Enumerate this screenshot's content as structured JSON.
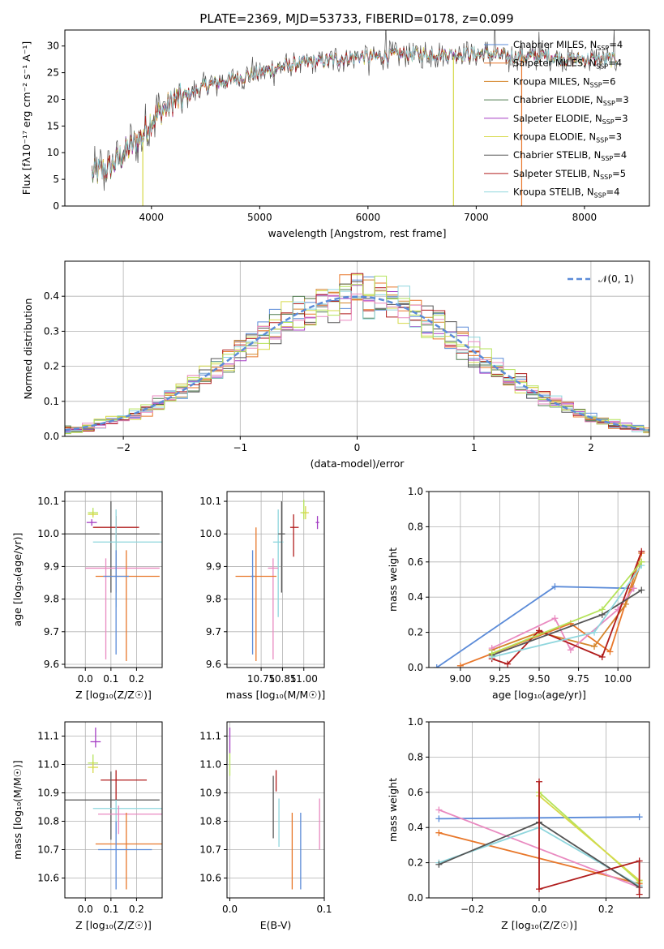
{
  "figure": {
    "title": "PLATE=2369, MJD=53733, FIBERID=0178, z=0.099"
  },
  "colors": {
    "Chabrier MILES": "#5b8bd8",
    "Salpeter MILES": "#e8772a",
    "Kroupa MILES": "#d4852a",
    "Chabrier ELODIE": "#4f7a4f",
    "Salpeter ELODIE": "#a53fc4",
    "Kroupa ELODIE": "#d6d94a",
    "Chabrier STELIB": "#555555",
    "Salpeter STELIB": "#b01c1c",
    "Kroupa STELIB": "#8fd6dd",
    "pink": "#e98ac0",
    "lime": "#b5e35a"
  },
  "chart_data": [
    {
      "id": "spectrum",
      "type": "line",
      "xlabel": "wavelength [Angstrom, rest frame]",
      "ylabel": "Flux [fλ10⁻¹⁷ erg cm⁻² s⁻¹ A⁻¹]",
      "xlim": [
        3200,
        8600
      ],
      "ylim": [
        0,
        33
      ],
      "xticks": [
        4000,
        5000,
        6000,
        7000,
        8000
      ],
      "yticks": [
        0,
        5,
        10,
        15,
        20,
        25,
        30
      ],
      "legend_position": "top-right",
      "legend": [
        {
          "name": "Chabrier MILES",
          "n_ssp": "=4"
        },
        {
          "name": "Salpeter MILES",
          "n_ssp": "=4"
        },
        {
          "name": "Kroupa MILES",
          "n_ssp": "=6"
        },
        {
          "name": "Chabrier ELODIE",
          "n_ssp": "=3"
        },
        {
          "name": "Salpeter ELODIE",
          "n_ssp": "=3"
        },
        {
          "name": "Kroupa ELODIE",
          "n_ssp": "=3"
        },
        {
          "name": "Chabrier STELIB",
          "n_ssp": "=4"
        },
        {
          "name": "Salpeter STELIB",
          "n_ssp": "=5"
        },
        {
          "name": "Kroupa STELIB",
          "n_ssp": "=4"
        }
      ],
      "continuum": [
        [
          3450,
          6
        ],
        [
          3600,
          7
        ],
        [
          3700,
          9
        ],
        [
          3800,
          11
        ],
        [
          3900,
          13
        ],
        [
          4000,
          16
        ],
        [
          4100,
          18
        ],
        [
          4200,
          19.5
        ],
        [
          4300,
          20.5
        ],
        [
          4400,
          21.5
        ],
        [
          4500,
          22.5
        ],
        [
          4700,
          23.5
        ],
        [
          4900,
          24.5
        ],
        [
          5100,
          25.5
        ],
        [
          5300,
          26.5
        ],
        [
          5500,
          27
        ],
        [
          5700,
          27.5
        ],
        [
          5900,
          28
        ],
        [
          6100,
          28
        ],
        [
          6300,
          28.5
        ],
        [
          6500,
          28.5
        ],
        [
          6700,
          28.5
        ],
        [
          6900,
          28.5
        ],
        [
          7100,
          28.5
        ],
        [
          7300,
          28
        ],
        [
          7500,
          28
        ],
        [
          7700,
          28
        ],
        [
          7900,
          27.5
        ],
        [
          8100,
          27.5
        ],
        [
          8300,
          27.5
        ]
      ],
      "line_range": [
        3450,
        8300
      ]
    },
    {
      "id": "residuals",
      "type": "line",
      "xlabel": "(data-model)/error",
      "ylabel": "Normed distribution",
      "xlim": [
        -2.5,
        2.5
      ],
      "ylim": [
        0,
        0.5
      ],
      "xticks": [
        -2,
        -1,
        0,
        1,
        2
      ],
      "xtick_labels": [
        "−2",
        "−1",
        "0",
        "1",
        "2"
      ],
      "yticks": [
        0.0,
        0.1,
        0.2,
        0.3,
        0.4
      ],
      "yticklabels": [
        "0.0",
        "0.1",
        "0.2",
        "0.3",
        "0.4"
      ],
      "legend": "𝒩(0, 1)",
      "legend_position": "top-right",
      "gaussian": {
        "mean": 0,
        "sigma": 1
      },
      "bin_width": 0.1
    },
    {
      "id": "age-vs-Z",
      "type": "scatter",
      "xlabel": "Z [log₁₀(Z/Z☉)]",
      "ylabel": "age  [log₁₀(age/yr)]",
      "xlim": [
        -0.08,
        0.3
      ],
      "ylim": [
        9.59,
        10.13
      ],
      "xticks": [
        0.0,
        0.1,
        0.2
      ],
      "xticklabels": [
        "0.0",
        "0.1",
        "0.2"
      ],
      "yticks": [
        9.6,
        9.7,
        9.8,
        9.9,
        10.0,
        10.1
      ],
      "yticklabels": [
        "9.6",
        "9.7",
        "9.8",
        "9.9",
        "10.0",
        "10.1"
      ],
      "points": [
        {
          "series": "lime",
          "x": 0.03,
          "y": 10.065,
          "xerr": [
            0.02,
            0.02
          ],
          "yerr": [
            0.01,
            0.015
          ]
        },
        {
          "series": "Kroupa ELODIE",
          "x": 0.03,
          "y": 10.06,
          "xerr": [
            0.02,
            0.02
          ],
          "yerr": [
            0.01,
            0.01
          ]
        },
        {
          "series": "Salpeter ELODIE",
          "x": 0.025,
          "y": 10.035,
          "xerr": [
            0.02,
            0.02
          ],
          "yerr": [
            0.01,
            0.01
          ]
        },
        {
          "series": "Chabrier STELIB",
          "x": 0.1,
          "y": 10.0,
          "xerr": [
            0.19,
            0.19
          ],
          "yerr": [
            0.18,
            0.1
          ]
        },
        {
          "series": "Salpeter STELIB",
          "x": 0.12,
          "y": 10.02,
          "xerr": [
            0.09,
            0.09
          ],
          "yerr": [
            0.2,
            0.035
          ]
        },
        {
          "series": "Kroupa STELIB",
          "x": 0.12,
          "y": 9.975,
          "xerr": [
            0.09,
            0.19
          ],
          "yerr": [
            0.2,
            0.1
          ]
        },
        {
          "series": "pink",
          "x": 0.08,
          "y": 9.895,
          "xerr": [
            0.08,
            0.21
          ],
          "yerr": [
            0.28,
            0.03
          ]
        },
        {
          "series": "Salpeter MILES",
          "x": 0.16,
          "y": 9.87,
          "xerr": [
            0.12,
            0.13
          ],
          "yerr": [
            0.26,
            0.08
          ]
        },
        {
          "series": "Chabrier MILES",
          "x": 0.12,
          "y": 9.87,
          "xerr": [
            0.05,
            0.05
          ],
          "yerr": [
            0.24,
            0.08
          ]
        }
      ]
    },
    {
      "id": "age-vs-mass",
      "type": "scatter",
      "xlabel": "mass [log₁₀(M/M☉)]",
      "ylabel": "",
      "xlim": [
        10.55,
        11.12
      ],
      "ylim": [
        9.59,
        10.13
      ],
      "xticks": [
        10.75,
        10.875,
        11.0
      ],
      "xticklabels": [
        "10.75",
        "",
        "11.00"
      ],
      "yticks": [
        9.6,
        9.7,
        9.8,
        9.9,
        10.0,
        10.1
      ],
      "yticklabels": [
        "9.6",
        "9.7",
        "9.8",
        "9.9",
        "10.0",
        "10.1"
      ],
      "extra_xlabel": "10.85",
      "points": [
        {
          "series": "Salpeter ELODIE",
          "x": 11.08,
          "y": 10.035,
          "xerr": [
            0.01,
            0.01
          ],
          "yerr": [
            0.02,
            0.02
          ]
        },
        {
          "series": "lime",
          "x": 11.0,
          "y": 10.065,
          "xerr": [
            0.02,
            0.02
          ],
          "yerr": [
            0.02,
            0.04
          ]
        },
        {
          "series": "Kroupa ELODIE",
          "x": 11.01,
          "y": 10.065,
          "xerr": [
            0.02,
            0.02
          ],
          "yerr": [
            0.02,
            0.02
          ]
        },
        {
          "series": "Salpeter STELIB",
          "x": 10.94,
          "y": 10.02,
          "xerr": [
            0.02,
            0.03
          ],
          "yerr": [
            0.09,
            0.04
          ]
        },
        {
          "series": "Kroupa STELIB",
          "x": 10.85,
          "y": 9.975,
          "xerr": [
            0.03,
            0.03
          ],
          "yerr": [
            0.23,
            0.1
          ]
        },
        {
          "series": "Chabrier STELIB",
          "x": 10.87,
          "y": 10.0,
          "xerr": [
            0.02,
            0.02
          ],
          "yerr": [
            0.18,
            0.1
          ]
        },
        {
          "series": "pink",
          "x": 10.82,
          "y": 9.895,
          "xerr": [
            0.03,
            0.03
          ],
          "yerr": [
            0.28,
            0.03
          ]
        },
        {
          "series": "Salpeter MILES",
          "x": 10.72,
          "y": 9.87,
          "xerr": [
            0.12,
            0.12
          ],
          "yerr": [
            0.26,
            0.15
          ]
        },
        {
          "series": "Chabrier MILES",
          "x": 10.7,
          "y": 9.87,
          "xerr": [
            0.01,
            0.01
          ],
          "yerr": [
            0.24,
            0.08
          ]
        }
      ]
    },
    {
      "id": "weight-vs-age",
      "type": "line",
      "xlabel": "age  [log₁₀(age/yr)]",
      "ylabel": "mass weight",
      "xlim": [
        8.8,
        10.2
      ],
      "ylim": [
        0,
        1
      ],
      "xticks": [
        9.0,
        9.25,
        9.5,
        9.75,
        10.0
      ],
      "xticklabels": [
        "9.00",
        "9.25",
        "9.50",
        "9.75",
        "10.00"
      ],
      "yticks": [
        0,
        0.2,
        0.4,
        0.6,
        0.8,
        1.0
      ],
      "yticklabels": [
        "0.0",
        "0.2",
        "0.4",
        "0.6",
        "0.8",
        "1.0"
      ],
      "series": [
        {
          "name": "Chabrier MILES",
          "x": [
            8.85,
            9.6,
            10.1
          ],
          "y": [
            0.0,
            0.46,
            0.45
          ]
        },
        {
          "name": "Salpeter MILES",
          "x": [
            9.0,
            9.7,
            9.95,
            10.15
          ],
          "y": [
            0.01,
            0.25,
            0.09,
            0.65
          ]
        },
        {
          "name": "Kroupa MILES",
          "x": [
            9.2,
            9.5,
            9.85,
            10.05,
            10.15
          ],
          "y": [
            0.1,
            0.2,
            0.12,
            0.36,
            0.6
          ]
        },
        {
          "name": "pink",
          "x": [
            9.2,
            9.6,
            9.7,
            10.0,
            10.1
          ],
          "y": [
            0.11,
            0.28,
            0.1,
            0.33,
            0.45
          ]
        },
        {
          "name": "Salpeter STELIB",
          "x": [
            9.2,
            9.3,
            9.5,
            9.9,
            10.15
          ],
          "y": [
            0.05,
            0.02,
            0.21,
            0.06,
            0.66
          ]
        },
        {
          "name": "Chabrier STELIB",
          "x": [
            9.2,
            9.9,
            10.15
          ],
          "y": [
            0.07,
            0.3,
            0.44
          ]
        },
        {
          "name": "Kroupa STELIB",
          "x": [
            9.2,
            9.85,
            10.15
          ],
          "y": [
            0.06,
            0.2,
            0.58
          ]
        },
        {
          "name": "lime",
          "x": [
            9.2,
            9.9,
            10.15
          ],
          "y": [
            0.08,
            0.33,
            0.6
          ]
        }
      ]
    },
    {
      "id": "mass-vs-Z",
      "type": "scatter",
      "xlabel": "Z [log₁₀(Z/Z☉)]",
      "ylabel": "mass [log₁₀(M/M☉)]",
      "xlim": [
        -0.08,
        0.3
      ],
      "ylim": [
        10.53,
        11.15
      ],
      "xticks": [
        0.0,
        0.1,
        0.2
      ],
      "xticklabels": [
        "0.0",
        "0.1",
        "0.2"
      ],
      "yticks": [
        10.6,
        10.7,
        10.8,
        10.9,
        11.0,
        11.1
      ],
      "yticklabels": [
        "10.6",
        "10.7",
        "10.8",
        "10.9",
        "11.0",
        "11.1"
      ],
      "points": [
        {
          "series": "Salpeter ELODIE",
          "x": 0.04,
          "y": 11.08,
          "xerr": [
            0.02,
            0.02
          ],
          "yerr": [
            0.02,
            0.05
          ]
        },
        {
          "series": "lime",
          "x": 0.03,
          "y": 11.005,
          "xerr": [
            0.02,
            0.02
          ],
          "yerr": [
            0.02,
            0.03
          ]
        },
        {
          "series": "Kroupa ELODIE",
          "x": 0.03,
          "y": 10.99,
          "xerr": [
            0.02,
            0.02
          ],
          "yerr": [
            0.02,
            0.02
          ]
        },
        {
          "series": "Salpeter STELIB",
          "x": 0.12,
          "y": 10.945,
          "xerr": [
            0.06,
            0.12
          ],
          "yerr": [
            0.07,
            0.035
          ]
        },
        {
          "series": "Chabrier STELIB",
          "x": 0.1,
          "y": 10.875,
          "xerr": [
            0.19,
            0.19
          ],
          "yerr": [
            0.14,
            0.1
          ]
        },
        {
          "series": "Kroupa STELIB",
          "x": 0.12,
          "y": 10.845,
          "xerr": [
            0.09,
            0.19
          ],
          "yerr": [
            0.09,
            0.03
          ]
        },
        {
          "series": "pink",
          "x": 0.13,
          "y": 10.825,
          "xerr": [
            0.08,
            0.17
          ],
          "yerr": [
            0.07,
            0.03
          ]
        },
        {
          "series": "Salpeter MILES",
          "x": 0.16,
          "y": 10.72,
          "xerr": [
            0.12,
            0.15
          ],
          "yerr": [
            0.16,
            0.11
          ]
        },
        {
          "series": "Chabrier MILES",
          "x": 0.12,
          "y": 10.7,
          "xerr": [
            0.07,
            0.14
          ],
          "yerr": [
            0.14,
            0.1
          ]
        }
      ]
    },
    {
      "id": "mass-vs-EBV",
      "type": "scatter",
      "xlabel": "E(B-V)",
      "ylabel": "",
      "xlim": [
        -0.003,
        0.1
      ],
      "ylim": [
        10.53,
        11.15
      ],
      "xticks": [
        0.0,
        0.1
      ],
      "xticklabels": [
        "0.0",
        "0.1"
      ],
      "yticks": [
        10.6,
        10.7,
        10.8,
        10.9,
        11.0,
        11.1
      ],
      "yticklabels": [
        "10.6",
        "10.7",
        "10.8",
        "10.9",
        "11.0",
        "11.1"
      ],
      "points": [
        {
          "series": "Salpeter ELODIE",
          "x": 0.0,
          "y": 11.08,
          "xerr": [
            0,
            0
          ],
          "yerr": [
            0.04,
            0.05
          ]
        },
        {
          "series": "lime",
          "x": 0.0,
          "y": 11.0,
          "xerr": [
            0,
            0
          ],
          "yerr": [
            0.04,
            0.04
          ]
        },
        {
          "series": "Salpeter STELIB",
          "x": 0.049,
          "y": 10.945,
          "xerr": [
            0,
            0
          ],
          "yerr": [
            0.04,
            0.035
          ]
        },
        {
          "series": "Chabrier STELIB",
          "x": 0.046,
          "y": 10.87,
          "xerr": [
            0,
            0
          ],
          "yerr": [
            0.13,
            0.09
          ]
        },
        {
          "series": "Kroupa STELIB",
          "x": 0.052,
          "y": 10.78,
          "xerr": [
            0,
            0
          ],
          "yerr": [
            0.07,
            0.1
          ]
        },
        {
          "series": "pink",
          "x": 0.095,
          "y": 10.79,
          "xerr": [
            0,
            0
          ],
          "yerr": [
            0.09,
            0.09
          ]
        },
        {
          "series": "Salpeter MILES",
          "x": 0.066,
          "y": 10.7,
          "xerr": [
            0,
            0
          ],
          "yerr": [
            0.14,
            0.13
          ]
        },
        {
          "series": "Chabrier MILES",
          "x": 0.075,
          "y": 10.7,
          "xerr": [
            0,
            0
          ],
          "yerr": [
            0.14,
            0.13
          ]
        }
      ]
    },
    {
      "id": "weight-vs-Z",
      "type": "line",
      "xlabel": "Z [log₁₀(Z/Z☉)]",
      "ylabel": "mass weight",
      "xlim": [
        -0.33,
        0.33
      ],
      "ylim": [
        0,
        1
      ],
      "xticks": [
        -0.2,
        0.0,
        0.2
      ],
      "xticklabels": [
        "−0.2",
        "0.0",
        "0.2"
      ],
      "yticks": [
        0,
        0.2,
        0.4,
        0.6,
        0.8,
        1.0
      ],
      "yticklabels": [
        "0.0",
        "0.2",
        "0.4",
        "0.6",
        "0.8",
        "1.0"
      ],
      "series": [
        {
          "name": "Chabrier MILES",
          "x": [
            -0.3,
            0.3
          ],
          "y": [
            0.45,
            0.46
          ]
        },
        {
          "name": "Salpeter MILES",
          "x": [
            -0.3,
            0.3
          ],
          "y": [
            0.37,
            0.08
          ]
        },
        {
          "name": "pink",
          "x": [
            -0.3,
            0.3
          ],
          "y": [
            0.5,
            0.06
          ]
        },
        {
          "name": "Kroupa STELIB",
          "x": [
            -0.3,
            0.0,
            0.3
          ],
          "y": [
            0.2,
            0.4,
            0.07
          ]
        },
        {
          "name": "Chabrier STELIB",
          "x": [
            -0.3,
            0.0,
            0.3
          ],
          "y": [
            0.19,
            0.43,
            0.06
          ]
        },
        {
          "name": "lime",
          "x": [
            0.0,
            0.3
          ],
          "y": [
            0.6,
            0.09
          ]
        },
        {
          "name": "Kroupa ELODIE",
          "x": [
            0.0,
            0.3
          ],
          "y": [
            0.58,
            0.1
          ]
        },
        {
          "name": "Salpeter STELIB",
          "x": [
            0.0,
            0.0,
            0.3,
            0.3
          ],
          "y": [
            0.66,
            0.05,
            0.21,
            0.02
          ]
        }
      ]
    }
  ]
}
